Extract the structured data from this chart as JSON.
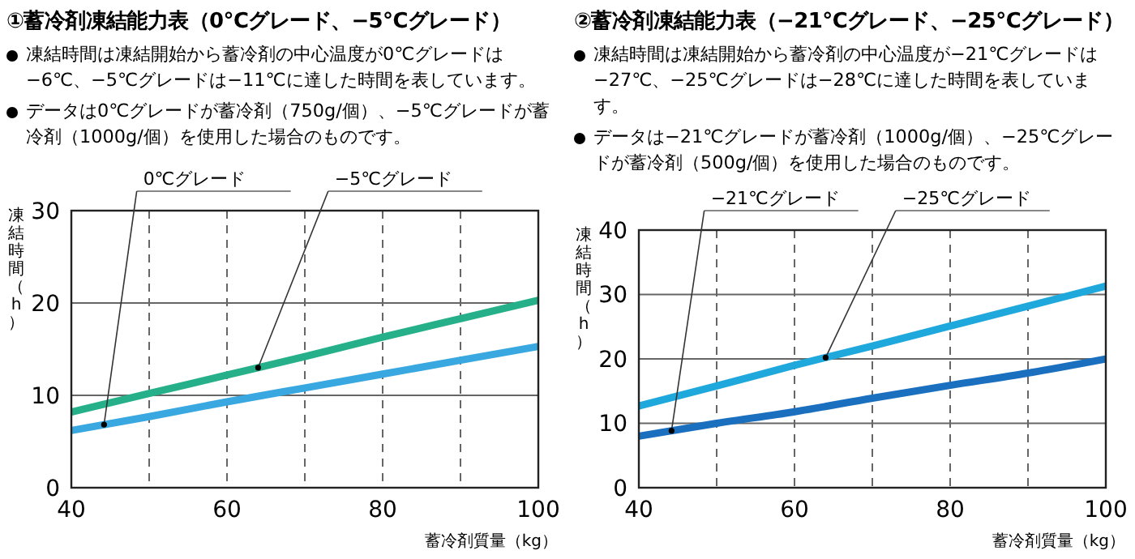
{
  "chart_data": [
    {
      "type": "line",
      "title": "①蓄冷剤凍結能力表（0℃グレード、−5℃グレード）",
      "annotations": [
        "凍結時間は凍結開始から蓄冷剤の中心温度が0℃グレードは−6℃、−5℃グレードは−11℃に達した時間を表しています。",
        "データは0℃グレードが蓄冷剤（750g/個）、−5℃グレードが蓄冷剤（1000g/個）を使用した場合のものです。"
      ],
      "xlabel": "蓄冷剤質量（kg）",
      "ylabel": "凍結時間（h）",
      "x": [
        40,
        50,
        60,
        70,
        80,
        90,
        100
      ],
      "series": [
        {
          "name": "0℃グレード",
          "color": "#3aa8e0",
          "values": [
            6.2,
            7.7,
            9.3,
            10.8,
            12.3,
            13.8,
            15.3
          ]
        },
        {
          "name": "−5℃グレード",
          "color": "#26b08a",
          "values": [
            8.2,
            10.2,
            12.2,
            14.2,
            16.3,
            18.3,
            20.3
          ]
        }
      ],
      "xlim": [
        40,
        100
      ],
      "xticks": [
        40,
        {
          "value": 50,
          "label": null
        },
        60,
        {
          "value": 70,
          "label": null
        },
        80,
        {
          "value": 90,
          "label": null
        },
        100
      ],
      "ylim": [
        0,
        30
      ],
      "yticks": [
        0,
        10,
        20,
        30
      ],
      "grid": true,
      "legend": false
    },
    {
      "type": "line",
      "title": "②蓄冷剤凍結能力表（−21℃グレード、−25℃グレード）",
      "annotations": [
        "凍結時間は凍結開始から蓄冷剤の中心温度が−21℃グレードは−27℃、−25℃グレードは−28℃に達した時間を表しています。",
        "データは−21℃グレードが蓄冷剤（1000g/個）、−25℃グレードが蓄冷剤（500g/個）を使用した場合のものです。"
      ],
      "xlabel": "蓄冷剤質量（kg）",
      "ylabel": "凍結時間（h）",
      "x": [
        40,
        50,
        60,
        70,
        80,
        90,
        100
      ],
      "series": [
        {
          "name": "−21℃グレード",
          "color": "#1a6fbf",
          "values": [
            8,
            10,
            11.8,
            13.9,
            15.9,
            17.8,
            20
          ]
        },
        {
          "name": "−25℃グレード",
          "color": "#1fa8dc",
          "values": [
            12.7,
            15.8,
            19,
            22,
            25.1,
            28.2,
            31.3
          ]
        }
      ],
      "xlim": [
        40,
        100
      ],
      "xticks": [
        40,
        {
          "value": 50,
          "label": null
        },
        60,
        {
          "value": 70,
          "label": null
        },
        80,
        {
          "value": 90,
          "label": null
        },
        100
      ],
      "ylim": [
        0,
        40
      ],
      "yticks": [
        0,
        10,
        20,
        30,
        40
      ],
      "grid": true,
      "legend": false
    }
  ]
}
